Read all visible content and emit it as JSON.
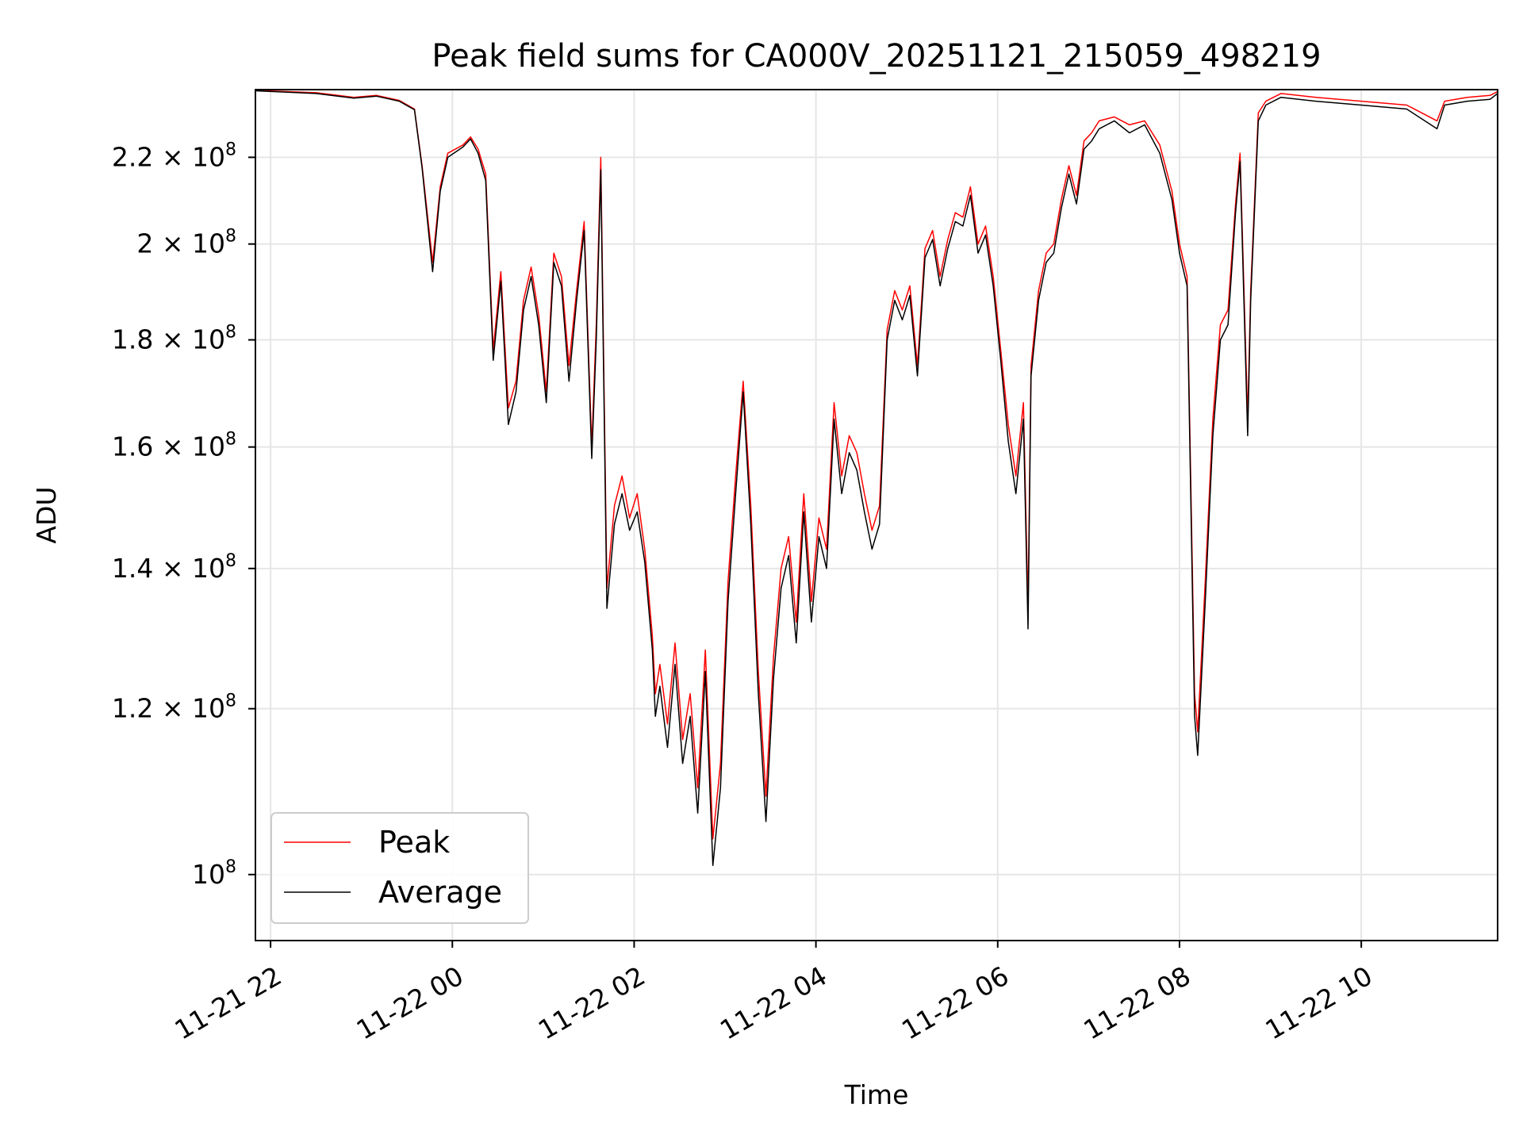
{
  "chart_data": {
    "type": "line",
    "title": "Peak field sums for CA000V_20251121_215059_498219",
    "xlabel": "Time",
    "ylabel": "ADU",
    "y_scale": "log",
    "xlim": [
      "2025-11-21 21:50",
      "2025-11-22 11:30"
    ],
    "ylim": [
      93000000,
      237000000
    ],
    "grid": true,
    "legend_position": "lower-left",
    "x_ticks": [
      {
        "t": "2025-11-21 22:00",
        "label": "11-21 22"
      },
      {
        "t": "2025-11-22 00:00",
        "label": "11-22 00"
      },
      {
        "t": "2025-11-22 02:00",
        "label": "11-22 02"
      },
      {
        "t": "2025-11-22 04:00",
        "label": "11-22 04"
      },
      {
        "t": "2025-11-22 06:00",
        "label": "11-22 06"
      },
      {
        "t": "2025-11-22 08:00",
        "label": "11-22 08"
      },
      {
        "t": "2025-11-22 10:00",
        "label": "11-22 10"
      }
    ],
    "y_ticks": [
      {
        "value": 100000000,
        "mantissa": "",
        "exp": "8"
      },
      {
        "value": 120000000,
        "mantissa": "1.2",
        "exp": "8"
      },
      {
        "value": 140000000,
        "mantissa": "1.4",
        "exp": "8"
      },
      {
        "value": 160000000,
        "mantissa": "1.6",
        "exp": "8"
      },
      {
        "value": 180000000,
        "mantissa": "1.8",
        "exp": "8"
      },
      {
        "value": 200000000,
        "mantissa": "2",
        "exp": "8"
      },
      {
        "value": 220000000,
        "mantissa": "2.2",
        "exp": "8"
      }
    ],
    "x": [
      "2025-11-21 21:50",
      "2025-11-21 22:30",
      "2025-11-21 22:55",
      "2025-11-21 23:10",
      "2025-11-21 23:25",
      "2025-11-21 23:35",
      "2025-11-21 23:40",
      "2025-11-21 23:47",
      "2025-11-21 23:52",
      "2025-11-21 23:57",
      "2025-11-22 00:07",
      "2025-11-22 00:12",
      "2025-11-22 00:17",
      "2025-11-22 00:22",
      "2025-11-22 00:27",
      "2025-11-22 00:32",
      "2025-11-22 00:37",
      "2025-11-22 00:42",
      "2025-11-22 00:47",
      "2025-11-22 00:52",
      "2025-11-22 00:57",
      "2025-11-22 01:02",
      "2025-11-22 01:07",
      "2025-11-22 01:12",
      "2025-11-22 01:17",
      "2025-11-22 01:22",
      "2025-11-22 01:27",
      "2025-11-22 01:32",
      "2025-11-22 01:35",
      "2025-11-22 01:38",
      "2025-11-22 01:42",
      "2025-11-22 01:47",
      "2025-11-22 01:52",
      "2025-11-22 01:57",
      "2025-11-22 02:02",
      "2025-11-22 02:07",
      "2025-11-22 02:12",
      "2025-11-22 02:14",
      "2025-11-22 02:17",
      "2025-11-22 02:22",
      "2025-11-22 02:27",
      "2025-11-22 02:32",
      "2025-11-22 02:37",
      "2025-11-22 02:42",
      "2025-11-22 02:47",
      "2025-11-22 02:52",
      "2025-11-22 02:57",
      "2025-11-22 03:02",
      "2025-11-22 03:07",
      "2025-11-22 03:12",
      "2025-11-22 03:17",
      "2025-11-22 03:22",
      "2025-11-22 03:27",
      "2025-11-22 03:32",
      "2025-11-22 03:37",
      "2025-11-22 03:42",
      "2025-11-22 03:47",
      "2025-11-22 03:52",
      "2025-11-22 03:57",
      "2025-11-22 04:02",
      "2025-11-22 04:07",
      "2025-11-22 04:12",
      "2025-11-22 04:17",
      "2025-11-22 04:22",
      "2025-11-22 04:27",
      "2025-11-22 04:32",
      "2025-11-22 04:37",
      "2025-11-22 04:42",
      "2025-11-22 04:47",
      "2025-11-22 04:52",
      "2025-11-22 04:57",
      "2025-11-22 05:02",
      "2025-11-22 05:07",
      "2025-11-22 05:12",
      "2025-11-22 05:17",
      "2025-11-22 05:22",
      "2025-11-22 05:27",
      "2025-11-22 05:32",
      "2025-11-22 05:37",
      "2025-11-22 05:42",
      "2025-11-22 05:47",
      "2025-11-22 05:52",
      "2025-11-22 05:57",
      "2025-11-22 06:02",
      "2025-11-22 06:07",
      "2025-11-22 06:12",
      "2025-11-22 06:17",
      "2025-11-22 06:20",
      "2025-11-22 06:22",
      "2025-11-22 06:27",
      "2025-11-22 06:32",
      "2025-11-22 06:37",
      "2025-11-22 06:42",
      "2025-11-22 06:47",
      "2025-11-22 06:52",
      "2025-11-22 06:57",
      "2025-11-22 07:02",
      "2025-11-22 07:07",
      "2025-11-22 07:17",
      "2025-11-22 07:27",
      "2025-11-22 07:37",
      "2025-11-22 07:47",
      "2025-11-22 07:55",
      "2025-11-22 08:00",
      "2025-11-22 08:05",
      "2025-11-22 08:10",
      "2025-11-22 08:12",
      "2025-11-22 08:17",
      "2025-11-22 08:22",
      "2025-11-22 08:27",
      "2025-11-22 08:32",
      "2025-11-22 08:37",
      "2025-11-22 08:40",
      "2025-11-22 08:45",
      "2025-11-22 08:47",
      "2025-11-22 08:52",
      "2025-11-22 08:57",
      "2025-11-22 09:07",
      "2025-11-22 09:30",
      "2025-11-22 10:00",
      "2025-11-22 10:30",
      "2025-11-22 10:50",
      "2025-11-22 10:55",
      "2025-11-22 11:10",
      "2025-11-22 11:25",
      "2025-11-22 11:30"
    ],
    "series": [
      {
        "name": "Peak",
        "color": "#ff0000",
        "values": [
          236800000,
          236200000,
          235000000,
          235500000,
          234200000,
          232000000,
          218000000,
          196000000,
          213000000,
          221000000,
          223000000,
          225000000,
          222000000,
          216000000,
          178000000,
          194000000,
          167000000,
          172000000,
          188000000,
          195000000,
          185000000,
          170000000,
          198000000,
          193000000,
          175000000,
          190000000,
          205000000,
          160000000,
          183000000,
          220000000,
          137000000,
          150000000,
          155000000,
          148000000,
          152000000,
          143000000,
          130000000,
          122000000,
          126000000,
          118000000,
          129000000,
          116000000,
          122000000,
          110000000,
          128000000,
          104000000,
          113000000,
          138000000,
          155000000,
          172000000,
          150000000,
          125000000,
          109000000,
          127000000,
          140000000,
          145000000,
          132000000,
          152000000,
          135000000,
          148000000,
          143000000,
          168000000,
          155000000,
          162000000,
          159000000,
          152000000,
          146000000,
          150000000,
          182000000,
          190000000,
          186000000,
          191000000,
          175000000,
          199000000,
          203000000,
          193000000,
          201000000,
          207000000,
          206000000,
          213000000,
          200000000,
          204000000,
          193000000,
          178000000,
          164000000,
          155000000,
          168000000,
          134000000,
          175000000,
          190000000,
          198000000,
          200000000,
          210000000,
          218000000,
          211000000,
          224000000,
          226000000,
          229000000,
          230000000,
          228000000,
          229000000,
          223000000,
          212000000,
          200000000,
          193000000,
          122000000,
          117000000,
          138000000,
          165000000,
          183000000,
          186000000,
          209000000,
          221000000,
          165000000,
          190000000,
          231000000,
          234000000,
          236000000,
          235000000,
          234000000,
          233000000,
          229000000,
          234000000,
          235000000,
          235500000,
          236500000
        ]
      },
      {
        "name": "Average",
        "color": "#000000",
        "values": [
          236700000,
          236000000,
          234800000,
          235300000,
          234000000,
          231800000,
          217500000,
          194000000,
          212000000,
          220000000,
          222500000,
          224500000,
          221000000,
          214500000,
          176000000,
          192000000,
          164000000,
          170000000,
          186000000,
          193000000,
          183000000,
          168000000,
          196000000,
          191000000,
          172000000,
          188000000,
          203000000,
          158000000,
          180000000,
          217000000,
          134000000,
          147000000,
          152000000,
          146000000,
          149000000,
          141000000,
          128000000,
          119000000,
          123000000,
          115000000,
          126000000,
          113000000,
          119000000,
          107000000,
          125000000,
          101000000,
          110000000,
          135000000,
          152000000,
          170000000,
          147000000,
          122000000,
          106000000,
          124000000,
          137000000,
          142000000,
          129000000,
          149000000,
          132000000,
          145000000,
          140000000,
          165000000,
          152000000,
          159000000,
          156000000,
          149000000,
          143000000,
          147000000,
          180000000,
          188000000,
          184000000,
          189000000,
          173000000,
          197000000,
          201000000,
          191000000,
          199000000,
          205000000,
          204000000,
          211000000,
          198000000,
          202000000,
          191000000,
          176000000,
          161000000,
          152000000,
          165000000,
          131000000,
          173000000,
          188000000,
          196000000,
          198000000,
          208000000,
          216000000,
          209000000,
          222000000,
          224000000,
          227000000,
          229000000,
          226000000,
          228000000,
          221000000,
          210000000,
          198000000,
          191000000,
          119000000,
          114000000,
          135000000,
          162000000,
          180000000,
          183000000,
          207000000,
          219000000,
          162000000,
          188000000,
          229000000,
          233000000,
          235000000,
          234000000,
          233000000,
          232000000,
          227000000,
          233000000,
          234000000,
          234500000,
          236000000
        ]
      }
    ]
  }
}
